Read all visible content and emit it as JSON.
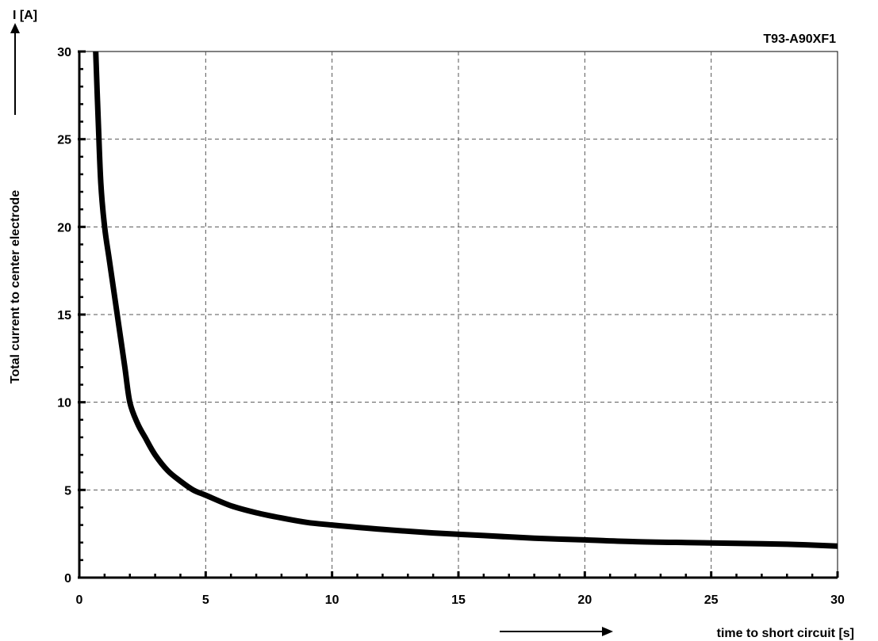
{
  "chart_data": {
    "type": "line",
    "title": "T93-A90XF1",
    "xlabel": "time to short circuit [s]",
    "ylabel": "Total current  to center electrode",
    "yunit": "I [A]",
    "xlim": [
      0,
      30
    ],
    "ylim": [
      0,
      30
    ],
    "xticks": [
      "0",
      "5",
      "10",
      "15",
      "20",
      "25",
      "30"
    ],
    "yticks": [
      "0",
      "5",
      "10",
      "15",
      "20",
      "25",
      "30"
    ],
    "grid": true,
    "series": [
      {
        "x": [
          0.65,
          0.75,
          0.85,
          1.0,
          1.2,
          1.5,
          1.8,
          2.0,
          2.3,
          2.6,
          3.0,
          3.5,
          4.0,
          4.5,
          5.0,
          6.0,
          7.0,
          8.0,
          9.0,
          10.0,
          12.0,
          14.0,
          16.0,
          18.0,
          20.0,
          22.0,
          24.0,
          26.0,
          28.0,
          30.0
        ],
        "y": [
          30.0,
          26.0,
          22.5,
          20.0,
          18.0,
          15.0,
          12.0,
          10.0,
          8.8,
          8.0,
          7.0,
          6.1,
          5.5,
          5.0,
          4.7,
          4.1,
          3.7,
          3.4,
          3.15,
          3.0,
          2.75,
          2.55,
          2.4,
          2.25,
          2.15,
          2.05,
          2.0,
          1.95,
          1.9,
          1.8
        ],
        "color": "#000000"
      }
    ]
  }
}
